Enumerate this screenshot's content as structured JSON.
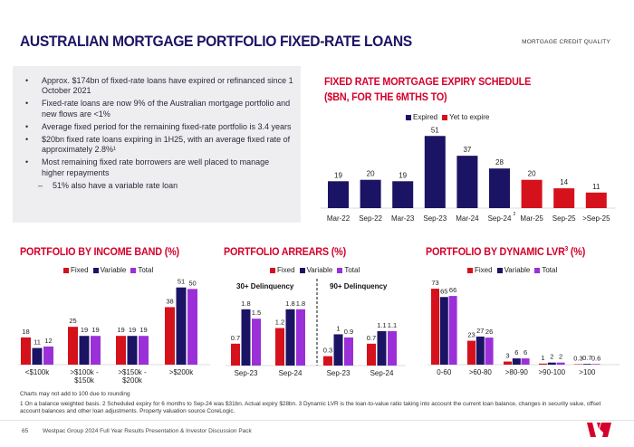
{
  "page": {
    "title": "AUSTRALIAN MORTGAGE PORTFOLIO FIXED-RATE LOANS",
    "section_tag": "MORTGAGE CREDIT QUALITY",
    "page_number": "65",
    "footer_text": "Westpac Group 2024 Full Year Results Presentation & Investor Discussion Pack",
    "note_round": "Charts may not add to 100 due to rounding",
    "footnotes": "1 On a balance weighted basis. 2 Scheduled expiry for 6 months to Sep-24 was $31bn. Actual expiry $28bn. 3 Dynamic LVR is the loan-to-value ratio taking into account the current loan balance, changes in security value, offset account balances and other loan adjustments. Property valuation source CoreLogic."
  },
  "bullets": [
    {
      "text": "Approx. $174bn of fixed-rate loans have expired or refinanced since 1 October 2021",
      "sub": false
    },
    {
      "text": "Fixed-rate loans are now 9% of the Australian mortgage portfolio and new flows are <1%",
      "sub": false
    },
    {
      "text": "Average fixed period for the remaining fixed-rate portfolio is 3.4 years",
      "sub": false
    },
    {
      "text": "$20bn fixed rate loans expiring in 1H25, with an average fixed rate of approximately 2.8%¹",
      "sub": false
    },
    {
      "text": "Most remaining fixed rate borrowers are well placed to manage higher repayments",
      "sub": false
    },
    {
      "text": "51% also have a variable rate loan",
      "sub": true
    }
  ],
  "colors": {
    "fixed": "#d5111c",
    "variable": "#1b1464",
    "total": "#9b30d9",
    "expired": "#1b1464",
    "yet_to_expire": "#d5111c"
  },
  "chart_data": [
    {
      "id": "expiry",
      "type": "bar",
      "title_line1": "FIXED RATE MORTGAGE EXPIRY SCHEDULE",
      "title_line2": "($BN, FOR THE 6MTHS TO)",
      "legend": [
        "Expired",
        "Yet to expire"
      ],
      "categories": [
        "Mar-22",
        "Sep-22",
        "Mar-23",
        "Sep-23",
        "Mar-24",
        "Sep-24",
        "Mar-25",
        "Sep-25",
        ">Sep-25"
      ],
      "category_superscripts": [
        "",
        "",
        "",
        "",
        "",
        "2",
        "",
        "",
        ""
      ],
      "values": [
        19,
        20,
        19,
        51,
        37,
        28,
        20,
        14,
        11
      ],
      "status": [
        "Expired",
        "Expired",
        "Expired",
        "Expired",
        "Expired",
        "Expired",
        "Yet to expire",
        "Yet to expire",
        "Yet to expire"
      ],
      "ylim": [
        0,
        55
      ]
    },
    {
      "id": "income",
      "type": "bar",
      "title": "PORTFOLIO BY INCOME BAND (%)",
      "legend": [
        "Fixed",
        "Variable",
        "Total"
      ],
      "categories": [
        "<$100k",
        ">$100k - $150k",
        ">$150k - $200k",
        ">$200k"
      ],
      "series": [
        {
          "name": "Fixed",
          "values": [
            18,
            25,
            19,
            38
          ]
        },
        {
          "name": "Variable",
          "values": [
            11,
            19,
            19,
            51
          ]
        },
        {
          "name": "Total",
          "values": [
            12,
            19,
            19,
            50
          ]
        }
      ],
      "ylim": [
        0,
        55
      ]
    },
    {
      "id": "arrears",
      "type": "bar",
      "title": "PORTFOLIO ARREARS (%)",
      "legend": [
        "Fixed",
        "Variable",
        "Total"
      ],
      "groups": [
        "30+ Delinquency",
        "90+ Delinquency"
      ],
      "categories": [
        "Sep-23",
        "Sep-24",
        "Sep-23",
        "Sep-24"
      ],
      "series": [
        {
          "name": "Fixed",
          "values": [
            0.7,
            1.2,
            0.3,
            0.7
          ]
        },
        {
          "name": "Variable",
          "values": [
            1.8,
            1.8,
            1.0,
            1.1
          ]
        },
        {
          "name": "Total",
          "values": [
            1.5,
            1.8,
            0.9,
            1.1
          ]
        }
      ],
      "ylim": [
        0,
        2.2
      ]
    },
    {
      "id": "lvr",
      "type": "bar",
      "title": "PORTFOLIO BY DYNAMIC LVR",
      "title_sup": "3",
      "title_suffix": "(%)",
      "legend": [
        "Fixed",
        "Variable",
        "Total"
      ],
      "categories": [
        "0-60",
        ">60-80",
        ">80-90",
        ">90-100",
        ">100"
      ],
      "series": [
        {
          "name": "Fixed",
          "values": [
            73,
            23,
            3,
            1,
            0.3
          ]
        },
        {
          "name": "Variable",
          "values": [
            65,
            27,
            6,
            2,
            0.7
          ]
        },
        {
          "name": "Total",
          "values": [
            66,
            26,
            6,
            2,
            0.6
          ]
        }
      ],
      "ylim": [
        0,
        80
      ]
    }
  ]
}
